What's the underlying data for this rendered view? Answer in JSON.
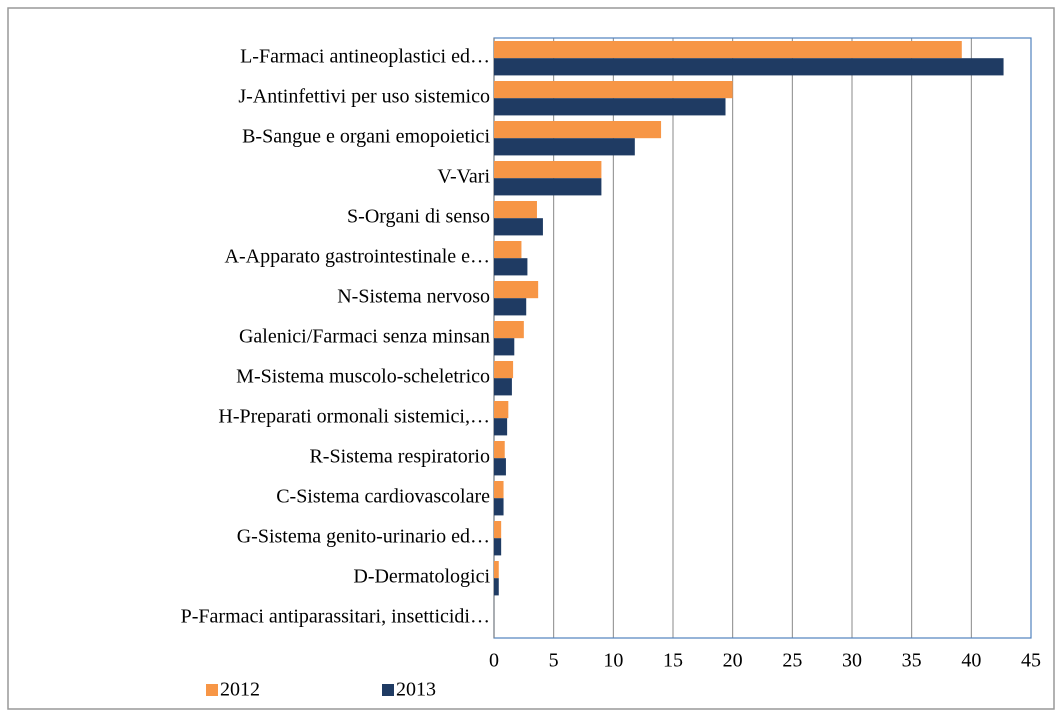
{
  "chart_data": {
    "type": "bar",
    "orientation": "horizontal",
    "categories": [
      "L-Farmaci antineoplastici ed…",
      "J-Antinfettivi per uso sistemico",
      "B-Sangue e organi emopoietici",
      "V-Vari",
      "S-Organi di senso",
      "A-Apparato gastrointestinale e…",
      "N-Sistema nervoso",
      "Galenici/Farmaci senza minsan",
      "M-Sistema muscolo-scheletrico",
      "H-Preparati ormonali sistemici,…",
      "R-Sistema respiratorio",
      "C-Sistema cardiovascolare",
      "G-Sistema genito-urinario ed…",
      "D-Dermatologici",
      "P-Farmaci antiparassitari, insetticidi…"
    ],
    "series": [
      {
        "name": "2012",
        "color": "#f79646",
        "values": [
          39.2,
          20.0,
          14.0,
          9.0,
          3.6,
          2.3,
          3.7,
          2.5,
          1.6,
          1.2,
          0.9,
          0.8,
          0.6,
          0.4,
          0
        ]
      },
      {
        "name": "2013",
        "color": "#1f3b63",
        "values": [
          42.7,
          19.4,
          11.8,
          9.0,
          4.1,
          2.8,
          2.7,
          1.7,
          1.5,
          1.1,
          1.0,
          0.8,
          0.6,
          0.4,
          0
        ]
      }
    ],
    "xlim": [
      0,
      45
    ],
    "xticks": [
      0,
      5,
      10,
      15,
      20,
      25,
      30,
      35,
      40,
      45
    ],
    "grid": true,
    "legend": "bottom-left"
  }
}
